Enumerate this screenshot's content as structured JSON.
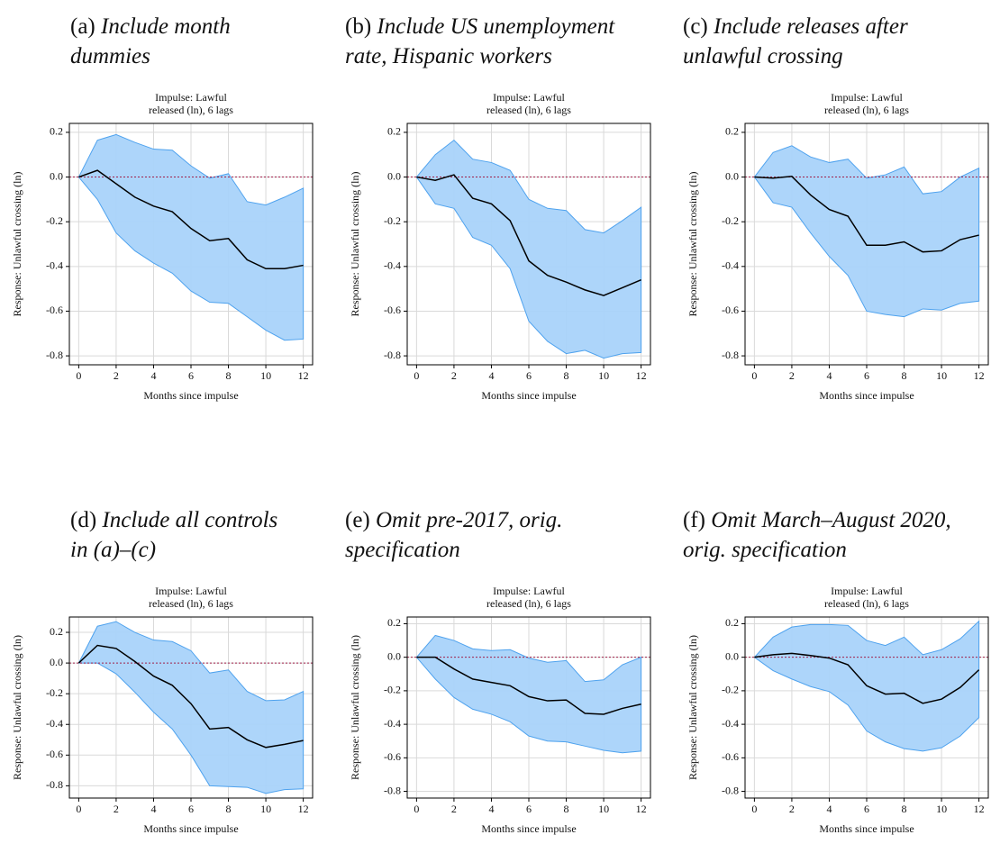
{
  "chart_data": [
    {
      "type": "line",
      "label": "(a)",
      "title": [
        "Include month",
        "dummies"
      ],
      "subtitle": [
        "Impulse: Lawful",
        "released (ln), 6 lags"
      ],
      "ylabel": "Response: Unlawful crossing (ln)",
      "xlabel": "Months since impulse",
      "x": [
        0,
        1,
        2,
        3,
        4,
        5,
        6,
        7,
        8,
        9,
        10,
        11,
        12
      ],
      "values": [
        0,
        0.03,
        -0.03,
        -0.09,
        -0.13,
        -0.155,
        -0.23,
        -0.285,
        -0.275,
        -0.37,
        -0.41,
        -0.41,
        -0.395
      ],
      "upper": [
        0,
        0.165,
        0.19,
        0.155,
        0.125,
        0.12,
        0.05,
        -0.005,
        0.015,
        -0.11,
        -0.125,
        -0.09,
        -0.05
      ],
      "lower": [
        0,
        -0.1,
        -0.25,
        -0.33,
        -0.385,
        -0.43,
        -0.51,
        -0.56,
        -0.565,
        -0.625,
        -0.685,
        -0.73,
        -0.725
      ],
      "color": "#000000",
      "band_color": "#a9d3fa",
      "band_edge_color": "#4ea2ee",
      "hline": 0,
      "hline_color": "#a0204a",
      "xlim": [
        -0.5,
        12.5
      ],
      "xticks": [
        0,
        2,
        4,
        6,
        8,
        10,
        12
      ],
      "ylim": [
        -0.84,
        0.24
      ],
      "yticks": [
        -0.8,
        -0.6,
        -0.4,
        -0.2,
        {
          "value": 0,
          "label": "0.0"
        },
        0.2
      ],
      "grid": true
    },
    {
      "type": "line",
      "label": "(b)",
      "title": [
        "Include US unemployment",
        "rate, Hispanic workers"
      ],
      "subtitle": [
        "Impulse: Lawful",
        "released (ln), 6 lags"
      ],
      "ylabel": "Response: Unlawful crossing (ln)",
      "xlabel": "Months since impulse",
      "x": [
        0,
        1,
        2,
        3,
        4,
        5,
        6,
        7,
        8,
        9,
        10,
        11,
        12
      ],
      "values": [
        0,
        -0.015,
        0.01,
        -0.095,
        -0.12,
        -0.195,
        -0.375,
        -0.44,
        -0.47,
        -0.505,
        -0.53,
        -0.495,
        -0.46
      ],
      "upper": [
        0,
        0.1,
        0.165,
        0.08,
        0.065,
        0.03,
        -0.1,
        -0.14,
        -0.15,
        -0.235,
        -0.25,
        -0.195,
        -0.135
      ],
      "lower": [
        0,
        -0.12,
        -0.14,
        -0.27,
        -0.305,
        -0.41,
        -0.645,
        -0.735,
        -0.79,
        -0.775,
        -0.81,
        -0.79,
        -0.785
      ],
      "color": "#000000",
      "band_color": "#a9d3fa",
      "band_edge_color": "#4ea2ee",
      "hline": 0,
      "hline_color": "#a0204a",
      "xlim": [
        -0.5,
        12.5
      ],
      "xticks": [
        0,
        2,
        4,
        6,
        8,
        10,
        12
      ],
      "ylim": [
        -0.84,
        0.24
      ],
      "yticks": [
        -0.8,
        -0.6,
        -0.4,
        -0.2,
        {
          "value": 0,
          "label": "0.0"
        },
        0.2
      ],
      "grid": true
    },
    {
      "type": "line",
      "label": "(c)",
      "title": [
        "Include releases after",
        "unlawful crossing"
      ],
      "subtitle": [
        "Impulse: Lawful",
        "released (ln), 6 lags"
      ],
      "ylabel": "Response: Unlawful crossing (ln)",
      "xlabel": "Months since impulse",
      "x": [
        0,
        1,
        2,
        3,
        4,
        5,
        6,
        7,
        8,
        9,
        10,
        11,
        12
      ],
      "values": [
        0,
        -0.005,
        0.003,
        -0.08,
        -0.145,
        -0.175,
        -0.305,
        -0.305,
        -0.29,
        -0.335,
        -0.33,
        -0.28,
        -0.26
      ],
      "upper": [
        0,
        0.11,
        0.14,
        0.09,
        0.065,
        0.08,
        -0.005,
        0.01,
        0.045,
        -0.075,
        -0.065,
        0.0,
        0.04
      ],
      "lower": [
        0,
        -0.115,
        -0.135,
        -0.25,
        -0.355,
        -0.44,
        -0.6,
        -0.615,
        -0.625,
        -0.59,
        -0.595,
        -0.565,
        -0.555
      ],
      "color": "#000000",
      "band_color": "#a9d3fa",
      "band_edge_color": "#4ea2ee",
      "hline": 0,
      "hline_color": "#a0204a",
      "xlim": [
        -0.5,
        12.5
      ],
      "xticks": [
        0,
        2,
        4,
        6,
        8,
        10,
        12
      ],
      "ylim": [
        -0.84,
        0.24
      ],
      "yticks": [
        -0.8,
        -0.6,
        -0.4,
        -0.2,
        {
          "value": 0,
          "label": "0.0"
        },
        0.2
      ],
      "grid": true
    },
    {
      "type": "line",
      "label": "(d)",
      "title": [
        "Include all controls",
        "in (a)–(c)"
      ],
      "subtitle": [
        "Impulse: Lawful",
        "released (ln), 6 lags"
      ],
      "ylabel": "Response: Unlawful crossing (ln)",
      "xlabel": "Months since impulse",
      "x": [
        0,
        1,
        2,
        3,
        4,
        5,
        6,
        7,
        8,
        9,
        10,
        11,
        12
      ],
      "values": [
        0,
        0.115,
        0.095,
        0.01,
        -0.085,
        -0.145,
        -0.265,
        -0.43,
        -0.42,
        -0.5,
        -0.55,
        -0.53,
        -0.505
      ],
      "upper": [
        0,
        0.24,
        0.27,
        0.2,
        0.15,
        0.14,
        0.08,
        -0.065,
        -0.045,
        -0.185,
        -0.245,
        -0.24,
        -0.185
      ],
      "lower": [
        0,
        0.0,
        -0.07,
        -0.19,
        -0.32,
        -0.43,
        -0.6,
        -0.8,
        -0.805,
        -0.81,
        -0.85,
        -0.825,
        -0.82
      ],
      "color": "#000000",
      "band_color": "#a9d3fa",
      "band_edge_color": "#4ea2ee",
      "hline": 0,
      "hline_color": "#a0204a",
      "xlim": [
        -0.5,
        12.5
      ],
      "xticks": [
        0,
        2,
        4,
        6,
        8,
        10,
        12
      ],
      "ylim": [
        -0.88,
        0.3
      ],
      "yticks": [
        -0.8,
        -0.6,
        -0.4,
        -0.2,
        {
          "value": 0,
          "label": "0.0"
        },
        0.2
      ],
      "grid": true
    },
    {
      "type": "line",
      "label": "(e)",
      "title": [
        "Omit pre-2017, orig.",
        "specification"
      ],
      "subtitle": [
        "Impulse: Lawful",
        "released (ln), 6 lags"
      ],
      "ylabel": "Response: Unlawful crossing (ln)",
      "xlabel": "Months since impulse",
      "x": [
        0,
        1,
        2,
        3,
        4,
        5,
        6,
        7,
        8,
        9,
        10,
        11,
        12
      ],
      "values": [
        0,
        0.0,
        -0.07,
        -0.13,
        -0.15,
        -0.17,
        -0.235,
        -0.26,
        -0.255,
        -0.335,
        -0.34,
        -0.305,
        -0.28
      ],
      "upper": [
        0,
        0.13,
        0.1,
        0.05,
        0.04,
        0.045,
        -0.005,
        -0.03,
        -0.02,
        -0.145,
        -0.135,
        -0.045,
        0.0
      ],
      "lower": [
        0,
        -0.13,
        -0.24,
        -0.31,
        -0.34,
        -0.385,
        -0.47,
        -0.5,
        -0.505,
        -0.53,
        -0.555,
        -0.57,
        -0.56
      ],
      "color": "#000000",
      "band_color": "#a9d3fa",
      "band_edge_color": "#4ea2ee",
      "hline": 0,
      "hline_color": "#a0204a",
      "xlim": [
        -0.5,
        12.5
      ],
      "xticks": [
        0,
        2,
        4,
        6,
        8,
        10,
        12
      ],
      "ylim": [
        -0.84,
        0.24
      ],
      "yticks": [
        -0.8,
        -0.6,
        -0.4,
        -0.2,
        {
          "value": 0,
          "label": "0.0"
        },
        0.2
      ],
      "grid": true
    },
    {
      "type": "line",
      "label": "(f)",
      "title": [
        "Omit March–August 2020,",
        "orig. specification"
      ],
      "subtitle": [
        "Impulse: Lawful",
        "released (ln), 6 lags"
      ],
      "ylabel": "Response: Unlawful crossing (ln)",
      "xlabel": "Months since impulse",
      "x": [
        0,
        1,
        2,
        3,
        4,
        5,
        6,
        7,
        8,
        9,
        10,
        11,
        12
      ],
      "values": [
        0,
        0.015,
        0.023,
        0.01,
        -0.005,
        -0.045,
        -0.17,
        -0.22,
        -0.215,
        -0.275,
        -0.25,
        -0.18,
        -0.075
      ],
      "upper": [
        0,
        0.12,
        0.18,
        0.195,
        0.195,
        0.19,
        0.1,
        0.07,
        0.12,
        0.015,
        0.045,
        0.11,
        0.215
      ],
      "lower": [
        0,
        -0.08,
        -0.13,
        -0.175,
        -0.205,
        -0.285,
        -0.44,
        -0.505,
        -0.545,
        -0.56,
        -0.54,
        -0.47,
        -0.36
      ],
      "color": "#000000",
      "band_color": "#a9d3fa",
      "band_edge_color": "#4ea2ee",
      "hline": 0,
      "hline_color": "#a0204a",
      "xlim": [
        -0.5,
        12.5
      ],
      "xticks": [
        0,
        2,
        4,
        6,
        8,
        10,
        12
      ],
      "ylim": [
        -0.84,
        0.24
      ],
      "yticks": [
        -0.8,
        -0.6,
        -0.4,
        -0.2,
        {
          "value": 0,
          "label": "0.0"
        },
        0.2
      ],
      "grid": true
    }
  ]
}
